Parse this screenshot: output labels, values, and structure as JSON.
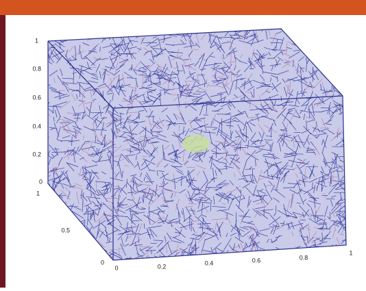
{
  "axes": {
    "z_ticks": [
      "0",
      "0.2",
      "0.4",
      "0.6",
      "0.8",
      "1"
    ],
    "y_ticks": [
      "0",
      "0.5",
      "1"
    ],
    "x_ticks": [
      "0",
      "0.2",
      "0.4",
      "0.6",
      "0.8",
      "1"
    ]
  }
}
